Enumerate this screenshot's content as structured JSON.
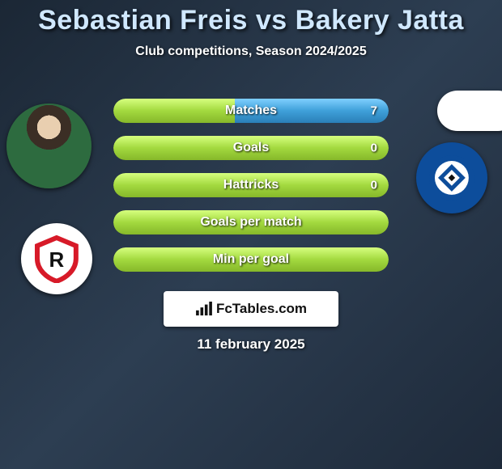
{
  "title": "Sebastian Freis vs Bakery Jatta",
  "subtitle": "Club competitions, Season 2024/2025",
  "date": "11 february 2025",
  "branding": {
    "name": "FcTables.com"
  },
  "colors": {
    "title": "#d0e8ff",
    "bg_from": "#1b2735",
    "bg_to": "#1e2a3a",
    "bar_bg": "#333c4a",
    "left_fill": "#a3d93f",
    "right_fill": "#3fa0d9",
    "text_white": "#ffffff"
  },
  "stats": [
    {
      "label": "Matches",
      "left_value": "",
      "right_value": "7",
      "left_pct": 44,
      "right_pct": 56
    },
    {
      "label": "Goals",
      "left_value": "",
      "right_value": "0",
      "left_pct": 100,
      "right_pct": 0
    },
    {
      "label": "Hattricks",
      "left_value": "",
      "right_value": "0",
      "left_pct": 100,
      "right_pct": 0
    },
    {
      "label": "Goals per match",
      "left_value": "",
      "right_value": "",
      "left_pct": 100,
      "right_pct": 0
    },
    {
      "label": "Min per goal",
      "left_value": "",
      "right_value": "",
      "left_pct": 100,
      "right_pct": 0
    }
  ],
  "players": {
    "left": {
      "name": "Sebastian Freis",
      "club_abbrev": "R",
      "club_color": "#d71a28"
    },
    "right": {
      "name": "Bakery Jatta",
      "club_abbrev": "HSV",
      "club_color": "#0d4d9b"
    }
  }
}
